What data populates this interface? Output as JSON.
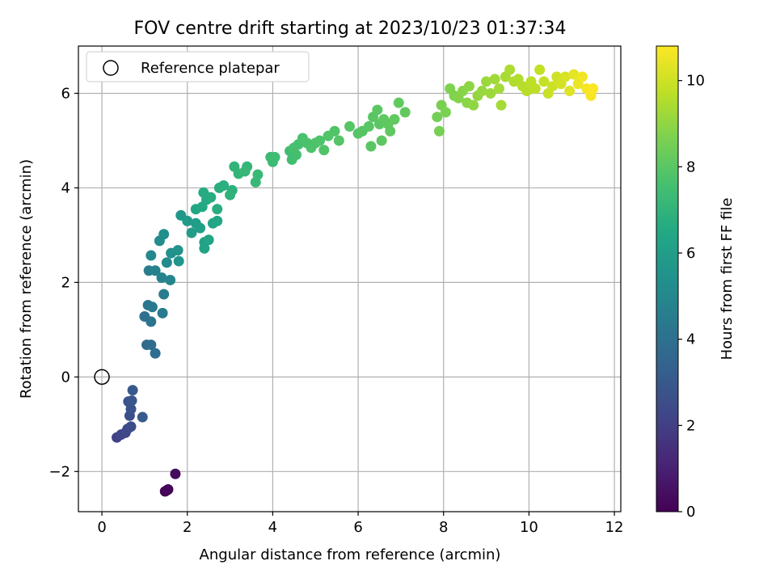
{
  "chart_data": {
    "type": "scatter",
    "title": "FOV centre drift starting at 2023/10/23 01:37:34",
    "xlabel": "Angular distance from reference (arcmin)",
    "ylabel": "Rotation from reference (arcmin)",
    "xlim": [
      -0.55,
      12.15
    ],
    "ylim": [
      -2.85,
      7.0
    ],
    "xticks": [
      0,
      2,
      4,
      6,
      8,
      10,
      12
    ],
    "yticks": [
      -2,
      0,
      2,
      4,
      6
    ],
    "grid": true,
    "legend": {
      "placement": "top-left",
      "entries": [
        "Reference platepar"
      ]
    },
    "reference_point": {
      "x": 0,
      "y": 0,
      "label": "Reference platepar"
    },
    "colorbar": {
      "label": "Hours from first FF file",
      "min": 0,
      "max": 10.8,
      "ticks": [
        0,
        2,
        4,
        6,
        8,
        10
      ],
      "colormap": "viridis"
    },
    "points": [
      {
        "x": 1.48,
        "y": -2.42,
        "c": 0.0
      },
      {
        "x": 1.55,
        "y": -2.38,
        "c": 0.1
      },
      {
        "x": 1.52,
        "y": -2.4,
        "c": 0.2
      },
      {
        "x": 1.72,
        "y": -2.05,
        "c": 0.3
      },
      {
        "x": 0.35,
        "y": -1.28,
        "c": 2.1
      },
      {
        "x": 0.45,
        "y": -1.22,
        "c": 2.2
      },
      {
        "x": 0.55,
        "y": -1.18,
        "c": 2.3
      },
      {
        "x": 0.6,
        "y": -1.1,
        "c": 2.4
      },
      {
        "x": 0.68,
        "y": -1.05,
        "c": 2.5
      },
      {
        "x": 0.65,
        "y": -0.82,
        "c": 2.6
      },
      {
        "x": 0.68,
        "y": -0.68,
        "c": 2.7
      },
      {
        "x": 0.62,
        "y": -0.52,
        "c": 2.8
      },
      {
        "x": 0.7,
        "y": -0.5,
        "c": 2.9
      },
      {
        "x": 0.72,
        "y": -0.28,
        "c": 3.0
      },
      {
        "x": 0.95,
        "y": -0.85,
        "c": 3.1
      },
      {
        "x": 1.05,
        "y": 0.68,
        "c": 3.7
      },
      {
        "x": 1.15,
        "y": 0.68,
        "c": 3.8
      },
      {
        "x": 1.25,
        "y": 0.5,
        "c": 3.9
      },
      {
        "x": 1.0,
        "y": 1.28,
        "c": 4.0
      },
      {
        "x": 1.15,
        "y": 1.17,
        "c": 4.1
      },
      {
        "x": 1.08,
        "y": 1.52,
        "c": 4.2
      },
      {
        "x": 1.18,
        "y": 1.48,
        "c": 4.3
      },
      {
        "x": 1.42,
        "y": 1.35,
        "c": 4.4
      },
      {
        "x": 1.45,
        "y": 1.75,
        "c": 4.5
      },
      {
        "x": 1.1,
        "y": 2.25,
        "c": 4.6
      },
      {
        "x": 1.25,
        "y": 2.25,
        "c": 4.7
      },
      {
        "x": 1.4,
        "y": 2.1,
        "c": 4.8
      },
      {
        "x": 1.6,
        "y": 2.05,
        "c": 4.9
      },
      {
        "x": 1.15,
        "y": 2.57,
        "c": 5.0
      },
      {
        "x": 1.52,
        "y": 2.42,
        "c": 5.1
      },
      {
        "x": 1.35,
        "y": 2.88,
        "c": 5.2
      },
      {
        "x": 1.45,
        "y": 3.02,
        "c": 5.3
      },
      {
        "x": 1.62,
        "y": 2.62,
        "c": 5.4
      },
      {
        "x": 1.78,
        "y": 2.68,
        "c": 5.5
      },
      {
        "x": 1.8,
        "y": 2.45,
        "c": 5.6
      },
      {
        "x": 1.85,
        "y": 3.42,
        "c": 5.7
      },
      {
        "x": 2.0,
        "y": 3.3,
        "c": 5.8
      },
      {
        "x": 2.1,
        "y": 3.05,
        "c": 5.9
      },
      {
        "x": 2.2,
        "y": 3.25,
        "c": 6.0
      },
      {
        "x": 2.3,
        "y": 3.15,
        "c": 6.1
      },
      {
        "x": 2.4,
        "y": 2.85,
        "c": 6.2
      },
      {
        "x": 2.4,
        "y": 2.72,
        "c": 6.25
      },
      {
        "x": 2.5,
        "y": 2.9,
        "c": 6.3
      },
      {
        "x": 2.6,
        "y": 3.25,
        "c": 6.35
      },
      {
        "x": 2.7,
        "y": 3.3,
        "c": 6.4
      },
      {
        "x": 2.2,
        "y": 3.55,
        "c": 6.45
      },
      {
        "x": 2.35,
        "y": 3.6,
        "c": 6.5
      },
      {
        "x": 2.45,
        "y": 3.75,
        "c": 6.55
      },
      {
        "x": 2.38,
        "y": 3.9,
        "c": 6.6
      },
      {
        "x": 2.55,
        "y": 3.8,
        "c": 6.65
      },
      {
        "x": 2.7,
        "y": 3.55,
        "c": 6.7
      },
      {
        "x": 2.75,
        "y": 4.0,
        "c": 6.75
      },
      {
        "x": 2.85,
        "y": 4.05,
        "c": 6.8
      },
      {
        "x": 3.05,
        "y": 3.95,
        "c": 6.85
      },
      {
        "x": 3.0,
        "y": 3.85,
        "c": 6.9
      },
      {
        "x": 3.1,
        "y": 4.45,
        "c": 7.0
      },
      {
        "x": 3.2,
        "y": 4.3,
        "c": 7.05
      },
      {
        "x": 3.4,
        "y": 4.45,
        "c": 7.1
      },
      {
        "x": 3.35,
        "y": 4.35,
        "c": 7.15
      },
      {
        "x": 3.6,
        "y": 4.12,
        "c": 7.2
      },
      {
        "x": 3.65,
        "y": 4.28,
        "c": 7.25
      },
      {
        "x": 3.95,
        "y": 4.65,
        "c": 7.3
      },
      {
        "x": 4.0,
        "y": 4.55,
        "c": 7.35
      },
      {
        "x": 4.05,
        "y": 4.65,
        "c": 7.4
      },
      {
        "x": 4.4,
        "y": 4.78,
        "c": 7.45
      },
      {
        "x": 4.45,
        "y": 4.6,
        "c": 7.5
      },
      {
        "x": 4.55,
        "y": 4.7,
        "c": 7.55
      },
      {
        "x": 4.6,
        "y": 4.92,
        "c": 7.6
      },
      {
        "x": 4.5,
        "y": 4.85,
        "c": 7.62
      },
      {
        "x": 4.7,
        "y": 5.05,
        "c": 7.65
      },
      {
        "x": 4.8,
        "y": 4.95,
        "c": 7.7
      },
      {
        "x": 4.9,
        "y": 4.85,
        "c": 7.72
      },
      {
        "x": 5.0,
        "y": 4.95,
        "c": 7.75
      },
      {
        "x": 5.1,
        "y": 5.0,
        "c": 7.78
      },
      {
        "x": 5.2,
        "y": 4.8,
        "c": 7.8
      },
      {
        "x": 5.3,
        "y": 5.1,
        "c": 7.82
      },
      {
        "x": 5.45,
        "y": 5.2,
        "c": 7.85
      },
      {
        "x": 5.55,
        "y": 5.0,
        "c": 7.88
      },
      {
        "x": 5.8,
        "y": 5.3,
        "c": 7.9
      },
      {
        "x": 6.0,
        "y": 5.15,
        "c": 7.92
      },
      {
        "x": 6.1,
        "y": 5.2,
        "c": 7.94
      },
      {
        "x": 6.25,
        "y": 5.3,
        "c": 7.96
      },
      {
        "x": 6.3,
        "y": 4.88,
        "c": 7.98
      },
      {
        "x": 6.35,
        "y": 5.5,
        "c": 8.0
      },
      {
        "x": 6.45,
        "y": 5.65,
        "c": 8.02
      },
      {
        "x": 6.5,
        "y": 5.35,
        "c": 8.04
      },
      {
        "x": 6.55,
        "y": 5.0,
        "c": 8.06
      },
      {
        "x": 6.6,
        "y": 5.45,
        "c": 8.08
      },
      {
        "x": 6.7,
        "y": 5.35,
        "c": 8.1
      },
      {
        "x": 6.75,
        "y": 5.2,
        "c": 8.12
      },
      {
        "x": 6.85,
        "y": 5.45,
        "c": 8.14
      },
      {
        "x": 6.95,
        "y": 5.8,
        "c": 8.16
      },
      {
        "x": 7.1,
        "y": 5.6,
        "c": 8.18
      },
      {
        "x": 7.85,
        "y": 5.5,
        "c": 8.5
      },
      {
        "x": 7.9,
        "y": 5.2,
        "c": 8.55
      },
      {
        "x": 7.95,
        "y": 5.75,
        "c": 8.6
      },
      {
        "x": 8.05,
        "y": 5.6,
        "c": 8.65
      },
      {
        "x": 8.15,
        "y": 6.1,
        "c": 8.7
      },
      {
        "x": 8.25,
        "y": 5.95,
        "c": 8.75
      },
      {
        "x": 8.35,
        "y": 5.9,
        "c": 8.8
      },
      {
        "x": 8.45,
        "y": 6.05,
        "c": 8.85
      },
      {
        "x": 8.55,
        "y": 5.8,
        "c": 8.9
      },
      {
        "x": 8.6,
        "y": 6.15,
        "c": 8.95
      },
      {
        "x": 8.7,
        "y": 5.75,
        "c": 9.0
      },
      {
        "x": 8.8,
        "y": 5.95,
        "c": 9.05
      },
      {
        "x": 8.9,
        "y": 6.05,
        "c": 9.1
      },
      {
        "x": 9.0,
        "y": 6.25,
        "c": 9.15
      },
      {
        "x": 9.1,
        "y": 6.0,
        "c": 9.2
      },
      {
        "x": 9.2,
        "y": 6.3,
        "c": 9.25
      },
      {
        "x": 9.3,
        "y": 6.1,
        "c": 9.3
      },
      {
        "x": 9.35,
        "y": 5.75,
        "c": 9.35
      },
      {
        "x": 9.45,
        "y": 6.35,
        "c": 9.4
      },
      {
        "x": 9.55,
        "y": 6.5,
        "c": 9.45
      },
      {
        "x": 9.65,
        "y": 6.25,
        "c": 9.5
      },
      {
        "x": 9.75,
        "y": 6.3,
        "c": 9.55
      },
      {
        "x": 9.85,
        "y": 6.15,
        "c": 9.6
      },
      {
        "x": 9.95,
        "y": 6.05,
        "c": 9.65
      },
      {
        "x": 10.05,
        "y": 6.25,
        "c": 9.7
      },
      {
        "x": 10.15,
        "y": 6.1,
        "c": 9.75
      },
      {
        "x": 10.25,
        "y": 6.5,
        "c": 9.8
      },
      {
        "x": 10.35,
        "y": 6.25,
        "c": 9.85
      },
      {
        "x": 10.45,
        "y": 6.0,
        "c": 9.9
      },
      {
        "x": 10.55,
        "y": 6.15,
        "c": 9.95
      },
      {
        "x": 10.65,
        "y": 6.35,
        "c": 10.0
      },
      {
        "x": 10.75,
        "y": 6.2,
        "c": 10.1
      },
      {
        "x": 10.85,
        "y": 6.35,
        "c": 10.2
      },
      {
        "x": 10.95,
        "y": 6.05,
        "c": 10.3
      },
      {
        "x": 11.05,
        "y": 6.4,
        "c": 10.4
      },
      {
        "x": 11.15,
        "y": 6.2,
        "c": 10.5
      },
      {
        "x": 11.25,
        "y": 6.35,
        "c": 10.6
      },
      {
        "x": 11.35,
        "y": 6.1,
        "c": 10.65
      },
      {
        "x": 11.45,
        "y": 5.95,
        "c": 10.7
      },
      {
        "x": 11.5,
        "y": 6.1,
        "c": 10.8
      }
    ]
  }
}
